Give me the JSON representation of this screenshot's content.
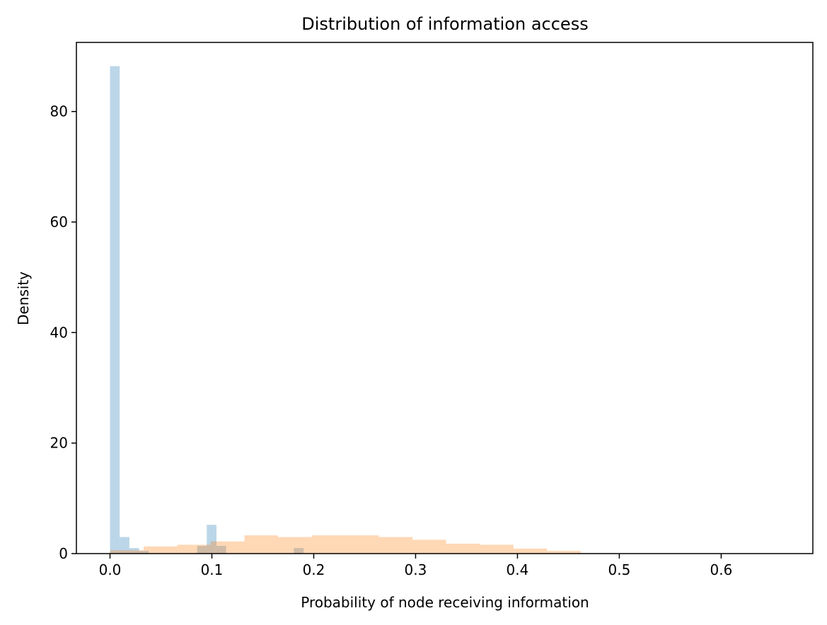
{
  "chart_data": {
    "type": "bar",
    "subtype": "overlaid-histogram",
    "title": "Distribution of information access",
    "xlabel": "Probability of node receiving information",
    "ylabel": "Density",
    "xlim": [
      -0.033,
      0.69
    ],
    "ylim": [
      0,
      92.5
    ],
    "xticks": [
      0.0,
      0.1,
      0.2,
      0.3,
      0.4,
      0.5,
      0.6
    ],
    "xtick_labels": [
      "0.0",
      "0.1",
      "0.2",
      "0.3",
      "0.4",
      "0.5",
      "0.6"
    ],
    "yticks": [
      0,
      20,
      40,
      60,
      80
    ],
    "ytick_labels": [
      "0",
      "20",
      "40",
      "60",
      "80"
    ],
    "grid": false,
    "series": [
      {
        "color": "#1f77b4",
        "alpha": 0.3,
        "bins": [
          {
            "x0": 0.0,
            "x1": 0.0095,
            "y": 88.2
          },
          {
            "x0": 0.0095,
            "x1": 0.019,
            "y": 3.0
          },
          {
            "x0": 0.019,
            "x1": 0.0285,
            "y": 1.0
          },
          {
            "x0": 0.0285,
            "x1": 0.038,
            "y": 0.5
          },
          {
            "x0": 0.0855,
            "x1": 0.095,
            "y": 1.4
          },
          {
            "x0": 0.095,
            "x1": 0.1045,
            "y": 5.2
          },
          {
            "x0": 0.1045,
            "x1": 0.114,
            "y": 1.4
          },
          {
            "x0": 0.1805,
            "x1": 0.19,
            "y": 1.0
          }
        ]
      },
      {
        "color": "#ff7f0e",
        "alpha": 0.3,
        "bins": [
          {
            "x0": 0.0,
            "x1": 0.033,
            "y": 0.6
          },
          {
            "x0": 0.033,
            "x1": 0.066,
            "y": 1.3
          },
          {
            "x0": 0.066,
            "x1": 0.099,
            "y": 1.6
          },
          {
            "x0": 0.099,
            "x1": 0.132,
            "y": 2.2
          },
          {
            "x0": 0.132,
            "x1": 0.165,
            "y": 3.3
          },
          {
            "x0": 0.165,
            "x1": 0.198,
            "y": 3.0
          },
          {
            "x0": 0.198,
            "x1": 0.231,
            "y": 3.3
          },
          {
            "x0": 0.231,
            "x1": 0.264,
            "y": 3.3
          },
          {
            "x0": 0.264,
            "x1": 0.297,
            "y": 3.0
          },
          {
            "x0": 0.297,
            "x1": 0.33,
            "y": 2.5
          },
          {
            "x0": 0.33,
            "x1": 0.363,
            "y": 1.8
          },
          {
            "x0": 0.363,
            "x1": 0.396,
            "y": 1.6
          },
          {
            "x0": 0.396,
            "x1": 0.429,
            "y": 0.9
          },
          {
            "x0": 0.429,
            "x1": 0.462,
            "y": 0.5
          },
          {
            "x0": 0.462,
            "x1": 0.495,
            "y": 0.1
          }
        ]
      }
    ]
  }
}
